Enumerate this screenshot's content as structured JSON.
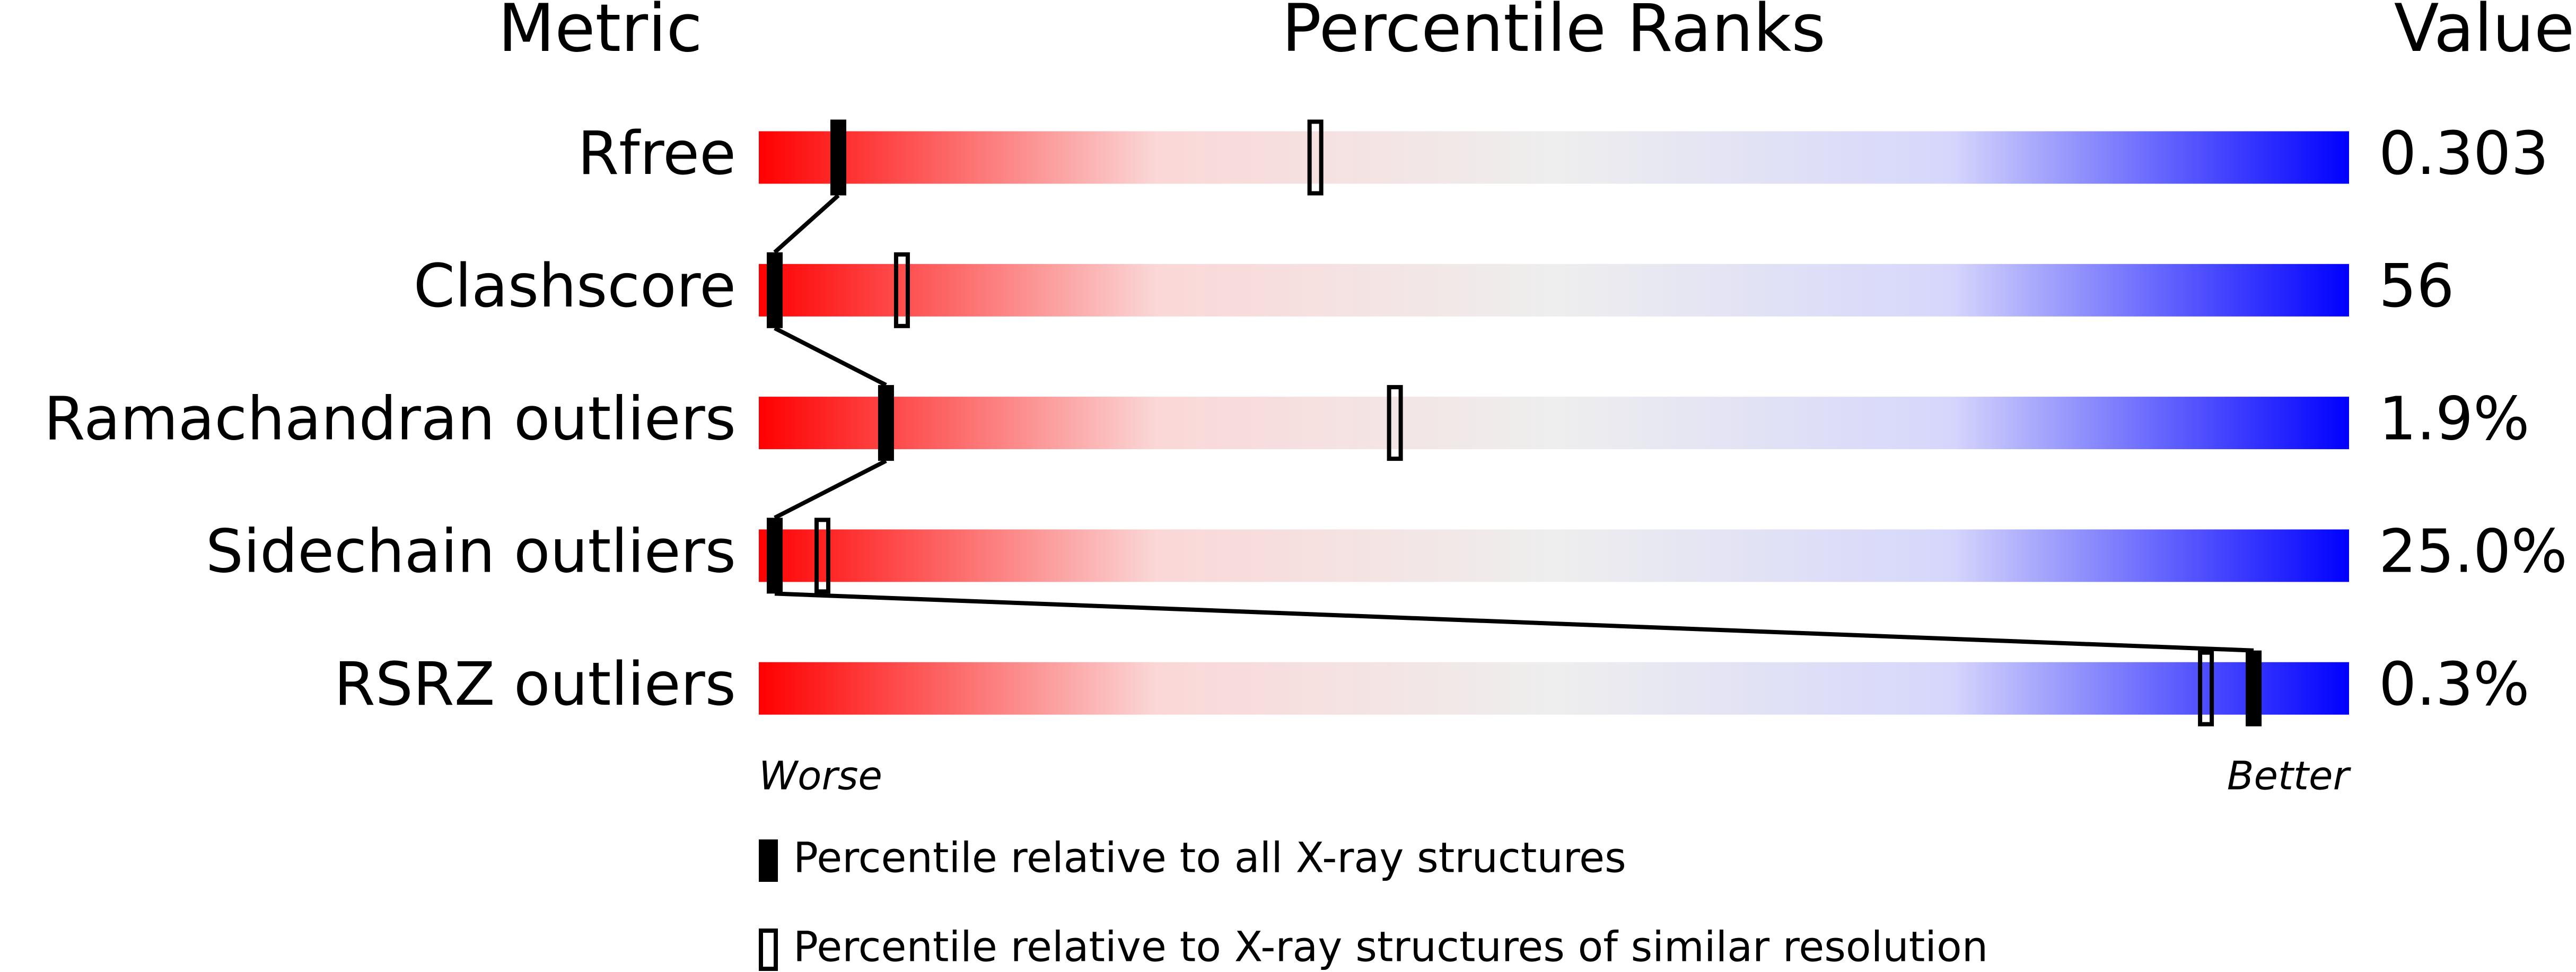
{
  "chart_data": {
    "type": "percentile",
    "headers": {
      "metric": "Metric",
      "ranks": "Percentile Ranks",
      "value": "Value"
    },
    "categories": [
      "Rfree",
      "Clashscore",
      "Ramachandran outliers",
      "Sidechain outliers",
      "RSRZ outliers"
    ],
    "metric_values": [
      "0.303",
      "56",
      "1.9%",
      "25.0%",
      "0.3%"
    ],
    "series": [
      {
        "name": "Percentile relative to all X-ray structures",
        "style": "filled",
        "color": "#000000",
        "values": [
          5,
          1,
          8,
          1,
          94
        ]
      },
      {
        "name": "Percentile relative to X-ray structures of similar resolution",
        "style": "outline",
        "color": "#000000",
        "values": [
          35,
          9,
          40,
          4,
          91
        ]
      }
    ],
    "xlim": [
      0,
      100
    ],
    "axis_ends": {
      "low": "Worse",
      "high": "Better"
    },
    "gradient": [
      "#ff0000",
      "#fbd7d7",
      "#eeeeee",
      "#d6d6fc",
      "#0000ff"
    ]
  }
}
